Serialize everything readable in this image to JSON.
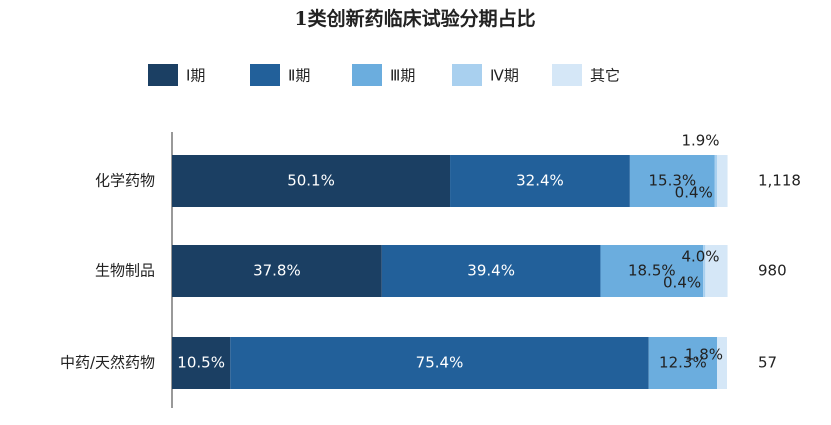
{
  "chart_data": {
    "type": "stacked-bar-horizontal",
    "title": "1类创新药临床试验分期占比",
    "categories": [
      "化学药物",
      "生物制品",
      "中药/天然药物"
    ],
    "xlim": [
      0,
      100
    ],
    "series": [
      {
        "name": "Ⅰ期",
        "color": "#1b3f63",
        "values": [
          50.1,
          37.8,
          10.5
        ],
        "value_labels": [
          "50.1%",
          "37.8%",
          "10.5%"
        ]
      },
      {
        "name": "Ⅱ期",
        "color": "#22609a",
        "values": [
          32.4,
          39.4,
          75.4
        ],
        "value_labels": [
          "32.4%",
          "39.4%",
          "75.4%"
        ]
      },
      {
        "name": "Ⅲ期",
        "color": "#6badde",
        "values": [
          15.3,
          18.5,
          12.3
        ],
        "value_labels": [
          "15.3%",
          "18.5%",
          "12.3%"
        ]
      },
      {
        "name": "Ⅳ期",
        "color": "#a9d0ef",
        "values": [
          0.4,
          0.4,
          null
        ],
        "value_labels": [
          "0.4%",
          "0.4%",
          null
        ]
      },
      {
        "name": "其它",
        "color": "#d5e7f7",
        "values": [
          1.9,
          4.0,
          1.8
        ],
        "value_labels": [
          "1.9%",
          "4.0%",
          "1.8%"
        ]
      }
    ],
    "totals": {
      "values": [
        1118,
        980,
        57
      ],
      "value_labels": [
        "1,118",
        "980",
        "57"
      ]
    }
  }
}
